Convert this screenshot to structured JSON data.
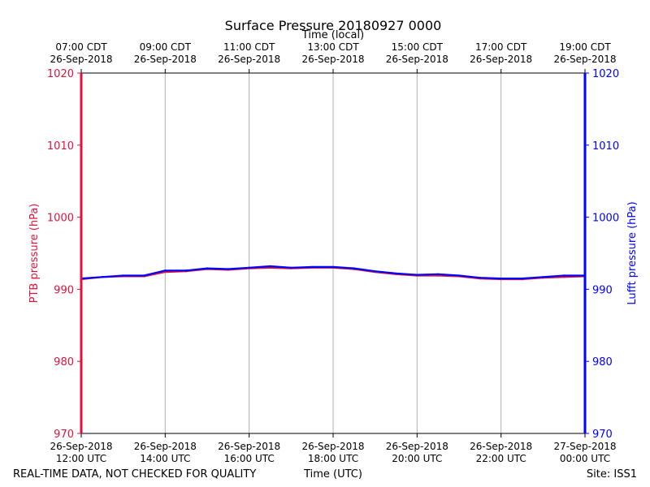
{
  "chart_data": {
    "type": "line",
    "title": "Surface Pressure 20180927 0000",
    "top_xlabel": "Time (local)",
    "xlabel": "Time (UTC)",
    "ylabel_left": "PTB pressure (hPa)",
    "ylabel_right": "Lufft pressure (hPa)",
    "ylim": [
      970,
      1020
    ],
    "yticks": [
      970,
      980,
      990,
      1000,
      1010,
      1020
    ],
    "xlim_hours_utc": [
      12,
      24
    ],
    "grid": "vertical",
    "bottom_ticks": [
      {
        "hour": 12,
        "line1": "26-Sep-2018",
        "line2": "12:00 UTC"
      },
      {
        "hour": 14,
        "line1": "26-Sep-2018",
        "line2": "14:00 UTC"
      },
      {
        "hour": 16,
        "line1": "26-Sep-2018",
        "line2": "16:00 UTC"
      },
      {
        "hour": 18,
        "line1": "26-Sep-2018",
        "line2": "18:00 UTC"
      },
      {
        "hour": 20,
        "line1": "26-Sep-2018",
        "line2": "20:00 UTC"
      },
      {
        "hour": 22,
        "line1": "26-Sep-2018",
        "line2": "22:00 UTC"
      },
      {
        "hour": 24,
        "line1": "27-Sep-2018",
        "line2": "00:00 UTC"
      }
    ],
    "top_ticks": [
      {
        "hour": 12,
        "line1": "07:00 CDT",
        "line2": "26-Sep-2018"
      },
      {
        "hour": 14,
        "line1": "09:00 CDT",
        "line2": "26-Sep-2018"
      },
      {
        "hour": 16,
        "line1": "11:00 CDT",
        "line2": "26-Sep-2018"
      },
      {
        "hour": 18,
        "line1": "13:00 CDT",
        "line2": "26-Sep-2018"
      },
      {
        "hour": 20,
        "line1": "15:00 CDT",
        "line2": "26-Sep-2018"
      },
      {
        "hour": 22,
        "line1": "17:00 CDT",
        "line2": "26-Sep-2018"
      },
      {
        "hour": 24,
        "line1": "19:00 CDT",
        "line2": "26-Sep-2018"
      }
    ],
    "x_hours": [
      12.0,
      12.5,
      13.0,
      13.5,
      14.0,
      14.5,
      15.0,
      15.5,
      16.0,
      16.5,
      17.0,
      17.5,
      18.0,
      18.5,
      19.0,
      19.5,
      20.0,
      20.5,
      21.0,
      21.5,
      22.0,
      22.5,
      23.0,
      23.5,
      24.0
    ],
    "series": [
      {
        "name": "PTB pressure",
        "axis": "left",
        "color": "#dc143c",
        "values": [
          991.4,
          991.7,
          991.8,
          991.8,
          992.4,
          992.5,
          992.8,
          992.7,
          992.9,
          993.0,
          992.9,
          993.0,
          993.0,
          992.8,
          992.4,
          992.1,
          991.9,
          991.9,
          991.8,
          991.5,
          991.4,
          991.4,
          991.6,
          991.7,
          991.8
        ]
      },
      {
        "name": "Lufft pressure",
        "axis": "right",
        "color": "#0000ff",
        "values": [
          991.5,
          991.7,
          991.9,
          991.9,
          992.6,
          992.6,
          992.9,
          992.8,
          993.0,
          993.2,
          993.0,
          993.1,
          993.1,
          992.9,
          992.5,
          992.2,
          992.0,
          992.1,
          991.9,
          991.6,
          991.5,
          991.5,
          991.7,
          991.9,
          991.9
        ]
      }
    ]
  },
  "footer": {
    "left": "REAL-TIME DATA, NOT CHECKED FOR QUALITY",
    "right": "Site: ISS1"
  },
  "colors": {
    "left_axis": "#dc143c",
    "right_axis": "#0000ff",
    "grid": "#b0b0b0"
  }
}
